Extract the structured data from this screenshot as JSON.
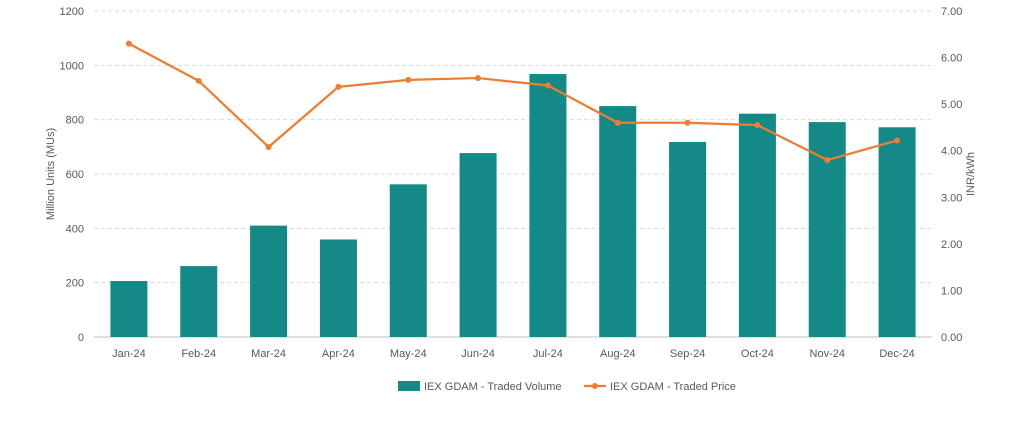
{
  "chart_data": {
    "type": "bar+line",
    "categories": [
      "Jan-24",
      "Feb-24",
      "Mar-24",
      "Apr-24",
      "May-24",
      "Jun-24",
      "Jul-24",
      "Aug-24",
      "Sep-24",
      "Oct-24",
      "Nov-24",
      "Dec-24"
    ],
    "series": [
      {
        "name": "IEX GDAM - Traded Volume",
        "type": "bar",
        "axis": "left",
        "color": "#138a87",
        "values": [
          206,
          261,
          410,
          359,
          562,
          677,
          968,
          850,
          718,
          822,
          791,
          772
        ]
      },
      {
        "name": "IEX GDAM - Traded Price",
        "type": "line",
        "axis": "right",
        "color": "#ed7d31",
        "values": [
          6.3,
          5.5,
          4.08,
          5.37,
          5.52,
          5.56,
          5.4,
          4.6,
          4.6,
          4.55,
          3.8,
          4.22
        ]
      }
    ],
    "ylabel_left": "Million Units (MUs)",
    "ylabel_right": "INR/kWh",
    "ylim_left": [
      0,
      1200
    ],
    "ylim_right": [
      0,
      7
    ],
    "yticks_left": [
      "0",
      "200",
      "400",
      "600",
      "800",
      "1000",
      "1200"
    ],
    "yticks_right": [
      "0.00",
      "1.00",
      "2.00",
      "3.00",
      "4.00",
      "5.00",
      "6.00",
      "7.00"
    ],
    "grid": true,
    "legend_position": "bottom"
  }
}
